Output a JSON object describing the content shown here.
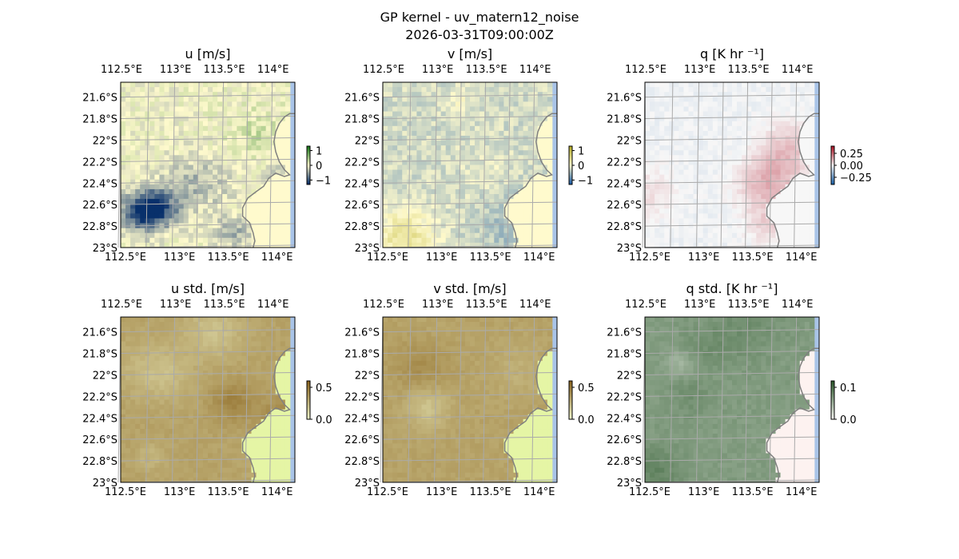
{
  "figure": {
    "title": "GP kernel - uv_matern12_noise",
    "subtitle": "2026-03-31T09:00:00Z"
  },
  "chart_data": [
    {
      "type": "heatmap",
      "panel": "u-mean",
      "title": "u [m/s]",
      "x_ticks": [
        "112.5°E",
        "113°E",
        "113.5°E",
        "114°E"
      ],
      "y_ticks": [
        "21.6°S",
        "21.8°S",
        "22°S",
        "22.2°S",
        "22.4°S",
        "22.6°S",
        "22.8°S",
        "23°S"
      ],
      "colorbar": {
        "ticks": [
          "1",
          "0",
          "−1"
        ],
        "tick_values": [
          1,
          0,
          -1
        ],
        "range": [
          -1.3,
          1.3
        ],
        "colormap": "diverging-blue-yellow-green"
      },
      "colors": {
        "low": "#08306b",
        "mid": "#fffacd",
        "high": "#1b7a1b"
      },
      "value_range": [
        -1.0,
        1.0
      ],
      "field_seed": 11
    },
    {
      "type": "heatmap",
      "panel": "v-mean",
      "title": "v [m/s]",
      "x_ticks": [
        "112.5°E",
        "113°E",
        "113.5°E",
        "114°E"
      ],
      "y_ticks": [
        "21.6°S",
        "21.8°S",
        "22°S",
        "22.2°S",
        "22.4°S",
        "22.6°S",
        "22.8°S",
        "23°S"
      ],
      "colorbar": {
        "ticks": [
          "1",
          "0",
          "−1"
        ],
        "tick_values": [
          1,
          0,
          -1
        ],
        "range": [
          -1.3,
          1.3
        ],
        "colormap": "diverging-blue-yellow-green"
      },
      "colors": {
        "low": "#1f5fa8",
        "mid": "#fffacd",
        "high": "#b8b02a"
      },
      "value_range": [
        -1.0,
        0.6
      ],
      "field_seed": 23
    },
    {
      "type": "heatmap",
      "panel": "q-mean",
      "title": "q [K hr ⁻¹]",
      "x_ticks": [
        "112.5°E",
        "113°E",
        "113.5°E",
        "114°E"
      ],
      "y_ticks": [
        "21.6°S",
        "21.8°S",
        "22°S",
        "22.2°S",
        "22.4°S",
        "22.6°S",
        "22.8°S",
        "23°S"
      ],
      "colorbar": {
        "ticks": [
          "0.25",
          "0.00",
          "−0.25"
        ],
        "tick_values": [
          0.25,
          0,
          -0.25
        ],
        "range": [
          -0.4,
          0.4
        ],
        "colormap": "diverging-red-blue"
      },
      "colors": {
        "low": "#2166ac",
        "mid": "#f7f7f7",
        "high": "#b2182b"
      },
      "value_range": [
        -0.08,
        0.06
      ],
      "field_seed": 37
    },
    {
      "type": "heatmap",
      "panel": "u-std",
      "title": "u std. [m/s]",
      "x_ticks": [
        "112.5°E",
        "113°E",
        "113.5°E",
        "114°E"
      ],
      "y_ticks": [
        "21.6°S",
        "21.8°S",
        "22°S",
        "22.2°S",
        "22.4°S",
        "22.6°S",
        "22.8°S",
        "23°S"
      ],
      "colorbar": {
        "ticks": [
          "0.5",
          "0.0"
        ],
        "tick_values": [
          0.5,
          0
        ],
        "range": [
          0,
          0.6
        ],
        "colormap": "sequential-brown"
      },
      "colors": {
        "low": "#f0f5c8",
        "high": "#8b6520",
        "land": "#e5f5a5"
      },
      "value_range": [
        0.3,
        0.45
      ],
      "field_seed": 51
    },
    {
      "type": "heatmap",
      "panel": "v-std",
      "title": "v std. [m/s]",
      "x_ticks": [
        "112.5°E",
        "113°E",
        "113.5°E",
        "114°E"
      ],
      "y_ticks": [
        "21.6°S",
        "21.8°S",
        "22°S",
        "22.2°S",
        "22.4°S",
        "22.6°S",
        "22.8°S",
        "23°S"
      ],
      "colorbar": {
        "ticks": [
          "0.5",
          "0.0"
        ],
        "tick_values": [
          0.5,
          0
        ],
        "range": [
          0,
          0.6
        ],
        "colormap": "sequential-brown"
      },
      "colors": {
        "low": "#f0f5c8",
        "high": "#8b6520",
        "land": "#e5f5a5"
      },
      "value_range": [
        0.3,
        0.45
      ],
      "field_seed": 67
    },
    {
      "type": "heatmap",
      "panel": "q-std",
      "title": "q std. [K hr ⁻¹]",
      "x_ticks": [
        "112.5°E",
        "113°E",
        "113.5°E",
        "114°E"
      ],
      "y_ticks": [
        "21.6°S",
        "21.8°S",
        "22°S",
        "22.2°S",
        "22.4°S",
        "22.6°S",
        "22.8°S",
        "23°S"
      ],
      "colorbar": {
        "ticks": [
          "0.1",
          "0.0"
        ],
        "tick_values": [
          0.1,
          0
        ],
        "range": [
          0,
          0.12
        ],
        "colormap": "sequential-grey-green"
      },
      "colors": {
        "low": "#f5f5f0",
        "high": "#2d5a2d",
        "land": "#fdf2f0"
      },
      "value_range": [
        0.01,
        0.02
      ],
      "field_seed": 83
    }
  ]
}
